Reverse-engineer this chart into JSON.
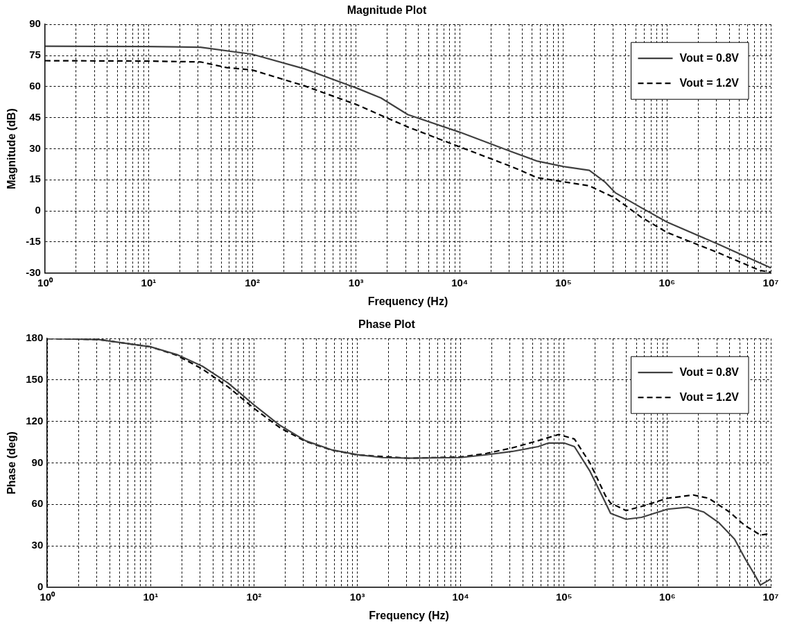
{
  "chart_data": [
    {
      "type": "line",
      "title": "Magnitude Plot",
      "xlabel": "Frequency (Hz)",
      "ylabel": "Magnitude (dB)",
      "log": "x",
      "grid": true,
      "legend": "top right",
      "xlim": [
        1,
        10000000
      ],
      "ylim": [
        -30,
        90
      ],
      "yticks": [
        -30,
        -15,
        0,
        15,
        30,
        45,
        60,
        75,
        90
      ],
      "xticks": [
        {
          "value": 1,
          "label": "10⁰"
        },
        {
          "value": 2,
          "label": null
        },
        {
          "value": 3,
          "label": null
        },
        {
          "value": 4,
          "label": null
        },
        {
          "value": 5,
          "label": null
        },
        {
          "value": 6,
          "label": null
        },
        {
          "value": 7,
          "label": null
        },
        {
          "value": 8,
          "label": null
        },
        {
          "value": 9,
          "label": null
        },
        {
          "value": 10,
          "label": "10¹"
        },
        {
          "value": 20,
          "label": null
        },
        {
          "value": 30,
          "label": null
        },
        {
          "value": 40,
          "label": null
        },
        {
          "value": 50,
          "label": null
        },
        {
          "value": 60,
          "label": null
        },
        {
          "value": 70,
          "label": null
        },
        {
          "value": 80,
          "label": null
        },
        {
          "value": 90,
          "label": null
        },
        {
          "value": 100,
          "label": "10²"
        },
        {
          "value": 200,
          "label": null
        },
        {
          "value": 300,
          "label": null
        },
        {
          "value": 400,
          "label": null
        },
        {
          "value": 500,
          "label": null
        },
        {
          "value": 600,
          "label": null
        },
        {
          "value": 700,
          "label": null
        },
        {
          "value": 800,
          "label": null
        },
        {
          "value": 900,
          "label": null
        },
        {
          "value": 1000,
          "label": "10³"
        },
        {
          "value": 2000,
          "label": null
        },
        {
          "value": 3000,
          "label": null
        },
        {
          "value": 4000,
          "label": null
        },
        {
          "value": 5000,
          "label": null
        },
        {
          "value": 6000,
          "label": null
        },
        {
          "value": 7000,
          "label": null
        },
        {
          "value": 8000,
          "label": null
        },
        {
          "value": 9000,
          "label": null
        },
        {
          "value": 10000,
          "label": "10⁴"
        },
        {
          "value": 20000,
          "label": null
        },
        {
          "value": 30000,
          "label": null
        },
        {
          "value": 40000,
          "label": null
        },
        {
          "value": 50000,
          "label": null
        },
        {
          "value": 60000,
          "label": null
        },
        {
          "value": 70000,
          "label": null
        },
        {
          "value": 80000,
          "label": null
        },
        {
          "value": 90000,
          "label": null
        },
        {
          "value": 100000,
          "label": "10⁵"
        },
        {
          "value": 200000,
          "label": null
        },
        {
          "value": 300000,
          "label": null
        },
        {
          "value": 400000,
          "label": null
        },
        {
          "value": 500000,
          "label": null
        },
        {
          "value": 600000,
          "label": null
        },
        {
          "value": 700000,
          "label": null
        },
        {
          "value": 800000,
          "label": null
        },
        {
          "value": 900000,
          "label": null
        },
        {
          "value": 1000000,
          "label": "10⁶"
        },
        {
          "value": 2000000,
          "label": null
        },
        {
          "value": 3000000,
          "label": null
        },
        {
          "value": 4000000,
          "label": null
        },
        {
          "value": 5000000,
          "label": null
        },
        {
          "value": 6000000,
          "label": null
        },
        {
          "value": 7000000,
          "label": null
        },
        {
          "value": 8000000,
          "label": null
        },
        {
          "value": 9000000,
          "label": null
        },
        {
          "value": 10000000,
          "label": "10⁷"
        }
      ],
      "series": [
        {
          "name": "Vout = 0.8V",
          "color": "#404040",
          "line_style": "solid",
          "x": [
            1,
            10,
            31.6,
            100,
            316,
            1000,
            1740,
            3160,
            10000,
            31600,
            56200,
            100000,
            178000,
            251000,
            316000,
            562000,
            1000000,
            3160000,
            10000000
          ],
          "values": [
            79.5,
            79.3,
            79,
            75.6,
            68.6,
            59.4,
            54.5,
            46.5,
            38,
            28.6,
            24,
            21.4,
            19.6,
            14,
            8.8,
            1.6,
            -5.4,
            -16.2,
            -27.5
          ]
        },
        {
          "name": "Vout = 1.2V",
          "color": "#000000",
          "line_style": "dashed",
          "x": [
            1,
            10,
            31.6,
            56.2,
            100,
            316,
            1000,
            3160,
            10000,
            31600,
            56200,
            100000,
            178000,
            316000,
            562000,
            1000000,
            3160000,
            7940000,
            10000000
          ],
          "values": [
            72.5,
            72.3,
            71.9,
            69.2,
            68,
            60.4,
            51.4,
            40.5,
            30.9,
            21.4,
            16,
            14.1,
            12.1,
            6.2,
            -3,
            -10.4,
            -20.3,
            -28.8,
            -29.5
          ]
        }
      ]
    },
    {
      "type": "line",
      "title": "Phase Plot",
      "xlabel": "Frequency (Hz)",
      "ylabel": "Phase (deg)",
      "log": "x",
      "grid": true,
      "legend": "top right",
      "xlim": [
        1,
        10000000
      ],
      "ylim": [
        0,
        180
      ],
      "yticks": [
        0,
        30,
        60,
        90,
        120,
        150,
        180
      ],
      "xticks": [
        {
          "value": 1,
          "label": "10⁰"
        },
        {
          "value": 2,
          "label": null
        },
        {
          "value": 3,
          "label": null
        },
        {
          "value": 4,
          "label": null
        },
        {
          "value": 5,
          "label": null
        },
        {
          "value": 6,
          "label": null
        },
        {
          "value": 7,
          "label": null
        },
        {
          "value": 8,
          "label": null
        },
        {
          "value": 9,
          "label": null
        },
        {
          "value": 10,
          "label": "10¹"
        },
        {
          "value": 20,
          "label": null
        },
        {
          "value": 30,
          "label": null
        },
        {
          "value": 40,
          "label": null
        },
        {
          "value": 50,
          "label": null
        },
        {
          "value": 60,
          "label": null
        },
        {
          "value": 70,
          "label": null
        },
        {
          "value": 80,
          "label": null
        },
        {
          "value": 90,
          "label": null
        },
        {
          "value": 100,
          "label": "10²"
        },
        {
          "value": 200,
          "label": null
        },
        {
          "value": 300,
          "label": null
        },
        {
          "value": 400,
          "label": null
        },
        {
          "value": 500,
          "label": null
        },
        {
          "value": 600,
          "label": null
        },
        {
          "value": 700,
          "label": null
        },
        {
          "value": 800,
          "label": null
        },
        {
          "value": 900,
          "label": null
        },
        {
          "value": 1000,
          "label": "10³"
        },
        {
          "value": 2000,
          "label": null
        },
        {
          "value": 3000,
          "label": null
        },
        {
          "value": 4000,
          "label": null
        },
        {
          "value": 5000,
          "label": null
        },
        {
          "value": 6000,
          "label": null
        },
        {
          "value": 7000,
          "label": null
        },
        {
          "value": 8000,
          "label": null
        },
        {
          "value": 9000,
          "label": null
        },
        {
          "value": 10000,
          "label": "10⁴"
        },
        {
          "value": 20000,
          "label": null
        },
        {
          "value": 30000,
          "label": null
        },
        {
          "value": 40000,
          "label": null
        },
        {
          "value": 50000,
          "label": null
        },
        {
          "value": 60000,
          "label": null
        },
        {
          "value": 70000,
          "label": null
        },
        {
          "value": 80000,
          "label": null
        },
        {
          "value": 90000,
          "label": null
        },
        {
          "value": 100000,
          "label": "10⁵"
        },
        {
          "value": 200000,
          "label": null
        },
        {
          "value": 300000,
          "label": null
        },
        {
          "value": 400000,
          "label": null
        },
        {
          "value": 500000,
          "label": null
        },
        {
          "value": 600000,
          "label": null
        },
        {
          "value": 700000,
          "label": null
        },
        {
          "value": 800000,
          "label": null
        },
        {
          "value": 900000,
          "label": null
        },
        {
          "value": 1000000,
          "label": "10⁶"
        },
        {
          "value": 2000000,
          "label": null
        },
        {
          "value": 3000000,
          "label": null
        },
        {
          "value": 4000000,
          "label": null
        },
        {
          "value": 5000000,
          "label": null
        },
        {
          "value": 6000000,
          "label": null
        },
        {
          "value": 7000000,
          "label": null
        },
        {
          "value": 8000000,
          "label": null
        },
        {
          "value": 9000000,
          "label": null
        },
        {
          "value": 10000000,
          "label": "10⁷"
        }
      ],
      "series": [
        {
          "name": "Vout = 0.8V",
          "color": "#404040",
          "line_style": "solid",
          "x": [
            1,
            3.16,
            10,
            17.8,
            31.6,
            56.2,
            100,
            178,
            316,
            562,
            1000,
            1740,
            3160,
            10000,
            17800,
            31600,
            56200,
            70800,
            100000,
            126000,
            178000,
            251000,
            282000,
            398000,
            562000,
            1000000,
            1580000,
            2240000,
            3160000,
            4470000,
            5620000,
            7080000,
            7940000,
            10000000
          ],
          "values": [
            180,
            179.3,
            174,
            168.5,
            160,
            147.8,
            132,
            117.2,
            106,
            99.5,
            96,
            93.9,
            93.5,
            93.9,
            95.9,
            98.3,
            101.8,
            104.4,
            104.4,
            101.8,
            84,
            61.4,
            53.5,
            49.2,
            50.6,
            56.5,
            57.9,
            54.5,
            46.6,
            34.8,
            21,
            8.3,
            1.6,
            5.9
          ]
        },
        {
          "name": "Vout = 1.2V",
          "color": "#000000",
          "line_style": "dashed",
          "x": [
            1,
            3.16,
            10,
            17.8,
            31.6,
            56.2,
            100,
            178,
            316,
            562,
            1000,
            3160,
            10000,
            17800,
            31600,
            56200,
            89100,
            126000,
            178000,
            251000,
            282000,
            398000,
            562000,
            1000000,
            1780000,
            2510000,
            3980000,
            5620000,
            7940000,
            10000000
          ],
          "values": [
            180,
            179.3,
            174,
            168,
            158,
            145,
            129.5,
            115.5,
            105.5,
            99.3,
            95.8,
            93.4,
            94.3,
            96.9,
            100.9,
            106.1,
            110.6,
            107.3,
            90,
            66.4,
            60.9,
            55.5,
            58.5,
            64.4,
            66.8,
            64.4,
            54.5,
            44.7,
            37.8,
            38.8
          ]
        }
      ]
    }
  ]
}
